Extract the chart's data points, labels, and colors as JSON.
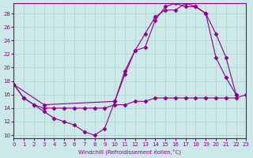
{
  "xlabel": "Windchill (Refroidissement éolien,°C)",
  "ylabel": "",
  "xlim": [
    0,
    23
  ],
  "ylim": [
    10,
    29
  ],
  "yticks": [
    10,
    12,
    14,
    16,
    18,
    20,
    22,
    24,
    26,
    28
  ],
  "xticks": [
    0,
    1,
    2,
    3,
    4,
    5,
    6,
    7,
    8,
    9,
    10,
    11,
    12,
    13,
    14,
    15,
    16,
    17,
    18,
    19,
    20,
    21,
    22,
    23
  ],
  "bg_color": "#cce8e8",
  "line_color": "#8b008b",
  "grid_color": "#b0d0d0",
  "line1_x": [
    0,
    1,
    2,
    3,
    4,
    5,
    6,
    7,
    8,
    9,
    10,
    11,
    12,
    13,
    14,
    15,
    16,
    17,
    18,
    19,
    20,
    21,
    22
  ],
  "line1_y": [
    17.5,
    15.5,
    14.5,
    13.5,
    12.5,
    12.0,
    11.5,
    10.5,
    10.0,
    11.0,
    15.0,
    19.5,
    22.5,
    23.0,
    27.0,
    29.0,
    29.5,
    29.0,
    29.0,
    28.0,
    21.5,
    18.5,
    16.0
  ],
  "line2_x": [
    0,
    1,
    2,
    3,
    4,
    5,
    6,
    7,
    8,
    9,
    10,
    11,
    12,
    13,
    14,
    15,
    16,
    17,
    18,
    19,
    20,
    21,
    22,
    23
  ],
  "line2_y": [
    17.5,
    15.5,
    14.5,
    14.0,
    14.0,
    14.0,
    14.0,
    14.0,
    14.0,
    14.0,
    14.5,
    14.5,
    15.0,
    15.0,
    15.5,
    15.5,
    15.5,
    15.5,
    15.5,
    15.5,
    15.5,
    15.5,
    15.5,
    16.0
  ],
  "line3_x": [
    0,
    3,
    10,
    11,
    12,
    13,
    14,
    15,
    16,
    17,
    18,
    19,
    20,
    21,
    22
  ],
  "line3_y": [
    17.5,
    14.5,
    15.0,
    19.0,
    22.5,
    25.0,
    27.5,
    28.5,
    28.5,
    29.5,
    29.0,
    28.0,
    25.0,
    21.5,
    16.0
  ]
}
